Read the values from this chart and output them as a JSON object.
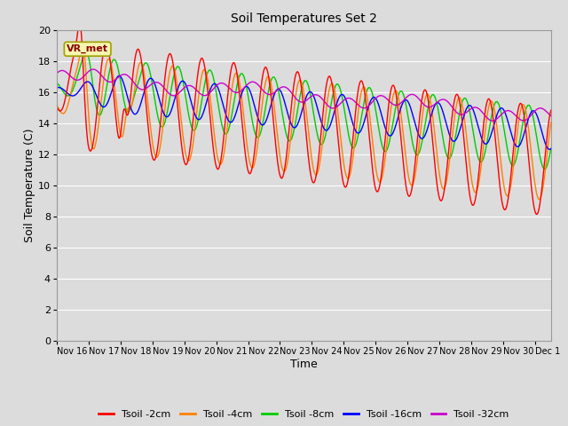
{
  "title": "Soil Temperatures Set 2",
  "xlabel": "Time",
  "ylabel": "Soil Temperature (C)",
  "ylim": [
    0,
    20
  ],
  "yticks": [
    0,
    2,
    4,
    6,
    8,
    10,
    12,
    14,
    16,
    18,
    20
  ],
  "background_color": "#DCDCDC",
  "plot_bg_color": "#DCDCDC",
  "legend_labels": [
    "Tsoil -2cm",
    "Tsoil -4cm",
    "Tsoil -8cm",
    "Tsoil -16cm",
    "Tsoil -32cm"
  ],
  "legend_colors": [
    "#FF0000",
    "#FF8000",
    "#00CC00",
    "#0000FF",
    "#CC00CC"
  ],
  "line_width": 1.0,
  "vr_met_label": "VR_met",
  "tick_labels": [
    "Nov 16",
    "Nov 17",
    "Nov 18",
    "Nov 19",
    "Nov 20",
    "Nov 21",
    "Nov 22",
    "Nov 23",
    "Nov 24",
    "Nov 25",
    "Nov 26",
    "Nov 27",
    "Nov 28",
    "Nov 29",
    "Nov 30",
    "Dec 1"
  ]
}
